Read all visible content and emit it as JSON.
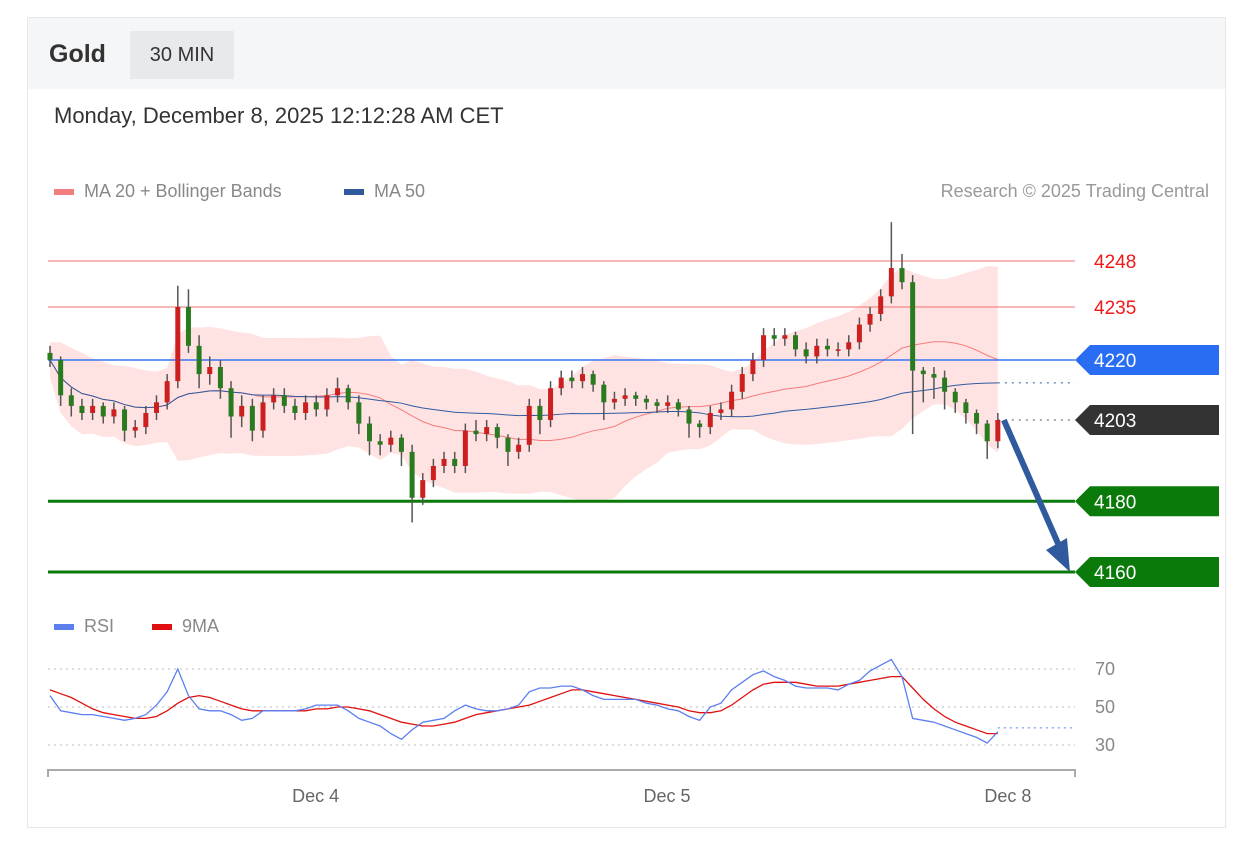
{
  "header": {
    "instrument": "Gold",
    "timeframe": "30 MIN"
  },
  "timestamp": "Monday, December 8, 2025 12:12:28 AM CET",
  "legend": [
    {
      "label": "MA 20 + Bollinger Bands",
      "color": "#f47c7c"
    },
    {
      "label": "MA 50",
      "color": "#2f5a9e"
    }
  ],
  "watermark": "Research © 2025 Trading Central",
  "rsi_legend": [
    {
      "label": "RSI",
      "color": "#5b7ff0"
    },
    {
      "label": "9MA",
      "color": "#e01010"
    }
  ],
  "colors": {
    "up": "#cc1f1f",
    "down": "#2a7a1f",
    "resistance": "#f07070",
    "pivot": "#2a6df5",
    "support": "#0a7a0a",
    "last": "#333333",
    "arrow": "#2f5a9e"
  },
  "chart_data": {
    "type": "candlestick",
    "title": "Gold",
    "timeframe": "30 MIN",
    "candles": [
      [
        4222,
        4224,
        4218,
        4220
      ],
      [
        4220,
        4221,
        4207,
        4210
      ],
      [
        4210,
        4212,
        4204,
        4207
      ],
      [
        4207,
        4209,
        4203,
        4205
      ],
      [
        4205,
        4209,
        4203,
        4207
      ],
      [
        4207,
        4208,
        4202,
        4204
      ],
      [
        4204,
        4208,
        4202,
        4206
      ],
      [
        4206,
        4207,
        4197,
        4200
      ],
      [
        4200,
        4203,
        4198,
        4201
      ],
      [
        4201,
        4207,
        4199,
        4205
      ],
      [
        4205,
        4210,
        4203,
        4208
      ],
      [
        4208,
        4216,
        4206,
        4214
      ],
      [
        4214,
        4241,
        4212,
        4235
      ],
      [
        4235,
        4240,
        4222,
        4224
      ],
      [
        4224,
        4227,
        4212,
        4216
      ],
      [
        4216,
        4221,
        4213,
        4218
      ],
      [
        4218,
        4220,
        4209,
        4212
      ],
      [
        4212,
        4214,
        4198,
        4204
      ],
      [
        4204,
        4210,
        4201,
        4207
      ],
      [
        4207,
        4209,
        4197,
        4200
      ],
      [
        4200,
        4210,
        4198,
        4208
      ],
      [
        4208,
        4212,
        4206,
        4210
      ],
      [
        4210,
        4212,
        4205,
        4207
      ],
      [
        4207,
        4209,
        4203,
        4205
      ],
      [
        4205,
        4210,
        4203,
        4208
      ],
      [
        4208,
        4210,
        4204,
        4206
      ],
      [
        4206,
        4212,
        4204,
        4210
      ],
      [
        4210,
        4215,
        4208,
        4212
      ],
      [
        4212,
        4213,
        4206,
        4208
      ],
      [
        4208,
        4210,
        4199,
        4202
      ],
      [
        4202,
        4204,
        4193,
        4197
      ],
      [
        4197,
        4199,
        4193,
        4196
      ],
      [
        4196,
        4200,
        4194,
        4198
      ],
      [
        4198,
        4199,
        4190,
        4194
      ],
      [
        4194,
        4196,
        4174,
        4181
      ],
      [
        4181,
        4188,
        4179,
        4186
      ],
      [
        4186,
        4192,
        4184,
        4190
      ],
      [
        4190,
        4194,
        4188,
        4192
      ],
      [
        4192,
        4194,
        4188,
        4190
      ],
      [
        4190,
        4202,
        4188,
        4200
      ],
      [
        4200,
        4203,
        4197,
        4199
      ],
      [
        4199,
        4203,
        4197,
        4201
      ],
      [
        4201,
        4202,
        4195,
        4198
      ],
      [
        4198,
        4199,
        4190,
        4194
      ],
      [
        4194,
        4198,
        4192,
        4196
      ],
      [
        4196,
        4209,
        4194,
        4207
      ],
      [
        4207,
        4209,
        4199,
        4203
      ],
      [
        4203,
        4214,
        4201,
        4212
      ],
      [
        4212,
        4217,
        4210,
        4215
      ],
      [
        4215,
        4217,
        4212,
        4214
      ],
      [
        4214,
        4218,
        4212,
        4216
      ],
      [
        4216,
        4217,
        4211,
        4213
      ],
      [
        4213,
        4214,
        4203,
        4208
      ],
      [
        4208,
        4211,
        4206,
        4209
      ],
      [
        4209,
        4212,
        4207,
        4210
      ],
      [
        4210,
        4211,
        4207,
        4209
      ],
      [
        4209,
        4210,
        4206,
        4208
      ],
      [
        4208,
        4209,
        4205,
        4207
      ],
      [
        4207,
        4210,
        4205,
        4208
      ],
      [
        4208,
        4209,
        4204,
        4206
      ],
      [
        4206,
        4207,
        4198,
        4202
      ],
      [
        4202,
        4203,
        4198,
        4201
      ],
      [
        4201,
        4207,
        4199,
        4205
      ],
      [
        4205,
        4208,
        4203,
        4206
      ],
      [
        4206,
        4213,
        4204,
        4211
      ],
      [
        4211,
        4218,
        4209,
        4216
      ],
      [
        4216,
        4222,
        4214,
        4220
      ],
      [
        4220,
        4229,
        4218,
        4227
      ],
      [
        4227,
        4229,
        4224,
        4226
      ],
      [
        4226,
        4229,
        4224,
        4227
      ],
      [
        4227,
        4228,
        4221,
        4223
      ],
      [
        4223,
        4225,
        4219,
        4221
      ],
      [
        4221,
        4226,
        4219,
        4224
      ],
      [
        4224,
        4226,
        4221,
        4223
      ],
      [
        4223,
        4225,
        4221,
        4223
      ],
      [
        4223,
        4227,
        4221,
        4225
      ],
      [
        4225,
        4232,
        4223,
        4230
      ],
      [
        4230,
        4235,
        4228,
        4233
      ],
      [
        4233,
        4240,
        4231,
        4238
      ],
      [
        4238,
        4259,
        4236,
        4246
      ],
      [
        4246,
        4250,
        4240,
        4242
      ],
      [
        4242,
        4244,
        4199,
        4217
      ],
      [
        4217,
        4218,
        4208,
        4216
      ],
      [
        4216,
        4218,
        4209,
        4215
      ],
      [
        4215,
        4217,
        4206,
        4211
      ],
      [
        4211,
        4212,
        4205,
        4208
      ],
      [
        4208,
        4209,
        4202,
        4205
      ],
      [
        4205,
        4206,
        4199,
        4202
      ],
      [
        4202,
        4203,
        4192,
        4197
      ],
      [
        4197,
        4205,
        4195,
        4203
      ]
    ],
    "levels": [
      {
        "value": 4248,
        "label": "4248",
        "kind": "resistance"
      },
      {
        "value": 4235,
        "label": "4235",
        "kind": "resistance"
      },
      {
        "value": 4220,
        "label": "4220",
        "kind": "pivot"
      },
      {
        "value": 4203,
        "label": "4203",
        "kind": "last"
      },
      {
        "value": 4180,
        "label": "4180",
        "kind": "support"
      },
      {
        "value": 4160,
        "label": "4160",
        "kind": "support"
      }
    ],
    "forecast_arrow": {
      "from": 4203,
      "to": 4160
    },
    "price_range": [
      4150,
      4265
    ],
    "x_ticks": [
      {
        "label": "Dec 4",
        "index": 24
      },
      {
        "label": "Dec 5",
        "index": 57
      },
      {
        "label": "Dec 8",
        "index": 89
      }
    ],
    "rsi": {
      "ticks": [
        {
          "label": "70",
          "value": 70
        },
        {
          "label": "50",
          "value": 50
        },
        {
          "label": "30",
          "value": 30
        }
      ],
      "range": [
        20,
        80
      ],
      "rsi": [
        56,
        48,
        47,
        46,
        46,
        45,
        44,
        43,
        44,
        46,
        51,
        58,
        70,
        56,
        49,
        48,
        48,
        46,
        43,
        44,
        48,
        48,
        48,
        48,
        49,
        51,
        51,
        51,
        48,
        44,
        42,
        40,
        36,
        33,
        38,
        42,
        43,
        44,
        48,
        51,
        49,
        48,
        48,
        49,
        51,
        58,
        60,
        60,
        61,
        61,
        59,
        56,
        54,
        54,
        54,
        54,
        52,
        51,
        49,
        48,
        45,
        43,
        50,
        52,
        59,
        63,
        67,
        69,
        66,
        64,
        61,
        60,
        60,
        60,
        59,
        62,
        64,
        69,
        72,
        75,
        66,
        44,
        43,
        42,
        40,
        38,
        36,
        34,
        31,
        37
      ],
      "ma9": [
        59,
        57,
        55,
        52,
        49,
        47,
        46,
        45,
        44,
        44,
        45,
        48,
        52,
        55,
        56,
        55,
        53,
        51,
        49,
        48,
        48,
        48,
        48,
        48,
        48,
        49,
        49,
        50,
        50,
        49,
        48,
        46,
        44,
        42,
        41,
        40,
        40,
        41,
        42,
        44,
        46,
        47,
        48,
        49,
        50,
        51,
        53,
        55,
        57,
        59,
        59,
        58,
        57,
        56,
        55,
        54,
        53,
        52,
        51,
        50,
        48,
        47,
        47,
        48,
        51,
        55,
        59,
        62,
        63,
        63,
        63,
        62,
        61,
        61,
        61,
        62,
        63,
        64,
        65,
        66,
        66,
        60,
        54,
        49,
        45,
        42,
        40,
        38,
        36,
        36
      ]
    }
  }
}
